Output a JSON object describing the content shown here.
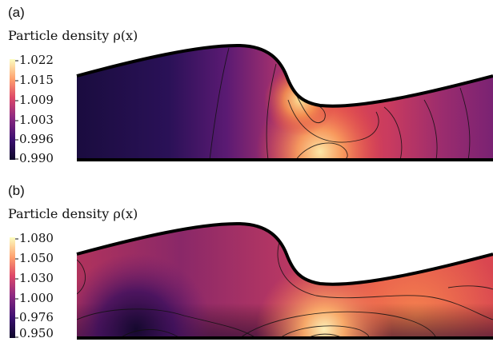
{
  "panels": [
    {
      "letter": "(a)",
      "title": "Particle density ρ(x)",
      "colorbar_ticks": [
        "1.022",
        "1.015",
        "1.009",
        "1.003",
        "0.996",
        "0.990"
      ]
    },
    {
      "letter": "(b)",
      "title": "Particle density ρ(x)",
      "colorbar_ticks": [
        "1.080",
        "1.050",
        "1.030",
        "1.000",
        "0.976",
        "0.950"
      ]
    }
  ],
  "colormap": [
    "#0d0829",
    "#3b0f70",
    "#8c2981",
    "#de4968",
    "#f66e5b",
    "#fea16e",
    "#fcfdbf"
  ]
}
